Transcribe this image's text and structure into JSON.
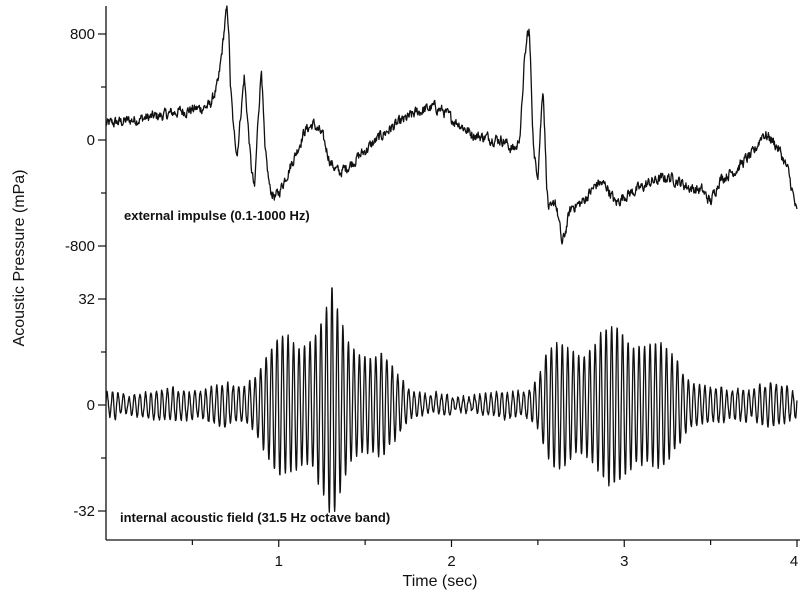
{
  "chart_data": {
    "type": "line",
    "xlabel": "Time (sec)",
    "ylabel": "Acoustic Pressure (mPa)",
    "xlim": [
      0,
      4
    ],
    "x_ticks": [
      1,
      2,
      3,
      4
    ],
    "x_minor_ticks": [
      0.5,
      1.5,
      2.5,
      3.5
    ],
    "panels": [
      {
        "name": "top",
        "annotation": "external impulse (0.1-1000 Hz)",
        "ylim": [
          -800,
          800
        ],
        "y_ticks": [
          800,
          0,
          -800
        ],
        "y_tick_labels": [
          "800",
          "0",
          "-800"
        ],
        "y_minor_ticks": [
          400,
          -400
        ],
        "series": [
          {
            "x": [
              0.0,
              0.05,
              0.1,
              0.15,
              0.2,
              0.25,
              0.3,
              0.35,
              0.4,
              0.45,
              0.5,
              0.55,
              0.6,
              0.62,
              0.65,
              0.67,
              0.69,
              0.7,
              0.71,
              0.72,
              0.74,
              0.76,
              0.78,
              0.8,
              0.82,
              0.84,
              0.86,
              0.88,
              0.9,
              0.92,
              0.95,
              0.98,
              1.0,
              1.05,
              1.1,
              1.15,
              1.2,
              1.25,
              1.3,
              1.35,
              1.4,
              1.45,
              1.5,
              1.55,
              1.6,
              1.65,
              1.7,
              1.75,
              1.8,
              1.85,
              1.9,
              1.95,
              2.0,
              2.05,
              2.1,
              2.15,
              2.2,
              2.25,
              2.3,
              2.35,
              2.38,
              2.4,
              2.42,
              2.44,
              2.45,
              2.46,
              2.47,
              2.48,
              2.5,
              2.52,
              2.53,
              2.55,
              2.56,
              2.58,
              2.6,
              2.62,
              2.64,
              2.66,
              2.68,
              2.7,
              2.75,
              2.8,
              2.85,
              2.9,
              2.95,
              3.0,
              3.05,
              3.1,
              3.15,
              3.2,
              3.25,
              3.3,
              3.35,
              3.4,
              3.45,
              3.5,
              3.55,
              3.6,
              3.65,
              3.7,
              3.75,
              3.8,
              3.85,
              3.9,
              3.95,
              4.0
            ],
            "y": [
              120,
              130,
              140,
              150,
              160,
              170,
              180,
              190,
              210,
              220,
              230,
              240,
              260,
              320,
              430,
              650,
              900,
              990,
              850,
              420,
              50,
              -100,
              200,
              480,
              150,
              -200,
              -380,
              150,
              560,
              -90,
              -380,
              -430,
              -400,
              -250,
              -100,
              70,
              120,
              40,
              -170,
              -250,
              -200,
              -140,
              -80,
              -20,
              40,
              90,
              130,
              170,
              210,
              230,
              250,
              220,
              160,
              120,
              60,
              30,
              20,
              10,
              0,
              -70,
              -50,
              80,
              550,
              800,
              820,
              500,
              100,
              -150,
              -250,
              200,
              420,
              -300,
              -500,
              -540,
              -450,
              -600,
              -790,
              -690,
              -560,
              -500,
              -480,
              -400,
              -320,
              -350,
              -480,
              -420,
              -390,
              -360,
              -320,
              -300,
              -280,
              -300,
              -340,
              -370,
              -380,
              -470,
              -300,
              -260,
              -220,
              -150,
              -100,
              50,
              10,
              -80,
              -240,
              -560
            ]
          }
        ]
      },
      {
        "name": "bottom",
        "annotation": "internal acoustic field (31.5 Hz octave band)",
        "ylim": [
          -32,
          32
        ],
        "y_ticks": [
          32,
          0,
          -32
        ],
        "y_tick_labels": [
          "32",
          "0",
          "-32"
        ],
        "y_minor_ticks": [
          16,
          -16
        ],
        "series": [
          {
            "frequency_hz": 31.5,
            "phase": 0.3,
            "envelope_x": [
              0.0,
              0.3,
              0.6,
              0.8,
              0.9,
              1.0,
              1.1,
              1.2,
              1.28,
              1.31,
              1.34,
              1.4,
              1.5,
              1.6,
              1.7,
              1.8,
              1.9,
              2.0,
              2.2,
              2.4,
              2.5,
              2.55,
              2.6,
              2.7,
              2.8,
              2.9,
              3.0,
              3.1,
              3.2,
              3.3,
              3.4,
              3.5,
              3.6,
              3.7,
              3.8,
              3.9,
              4.0
            ],
            "envelope_y": [
              3,
              4,
              5,
              6,
              12,
              18,
              21,
              22,
              26,
              30,
              25,
              20,
              17,
              13,
              8,
              4,
              3,
              2,
              3,
              4,
              8,
              14,
              16,
              17,
              19,
              20,
              21,
              21,
              17,
              12,
              8,
              5,
              4,
              5,
              6,
              5,
              4
            ]
          }
        ]
      }
    ]
  }
}
